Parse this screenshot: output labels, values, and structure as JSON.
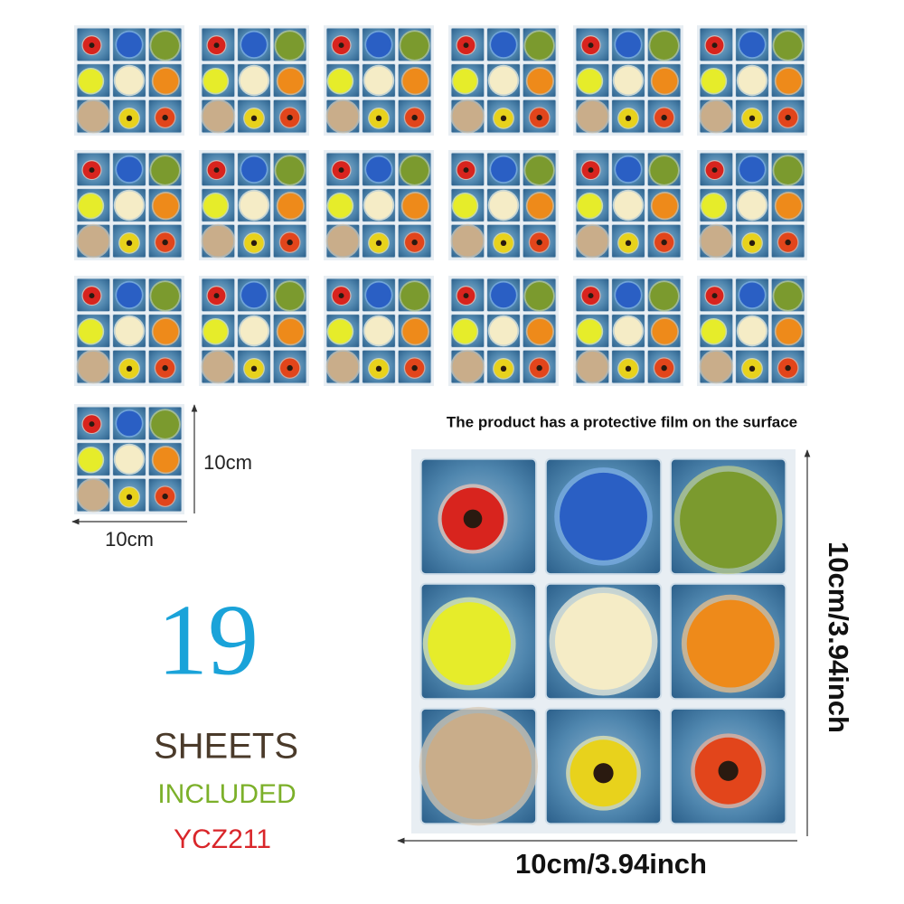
{
  "caption": "The product has a protective film on the surface",
  "small_sheet": {
    "height_label": "10cm",
    "width_label": "10cm"
  },
  "count": {
    "number": "19",
    "line1": "SHEETS",
    "line2": "INCLUDED",
    "code": "YCZ211"
  },
  "large_sheet": {
    "height_label": "10cm/3.94inch",
    "width_label": "10cm/3.94inch"
  }
}
